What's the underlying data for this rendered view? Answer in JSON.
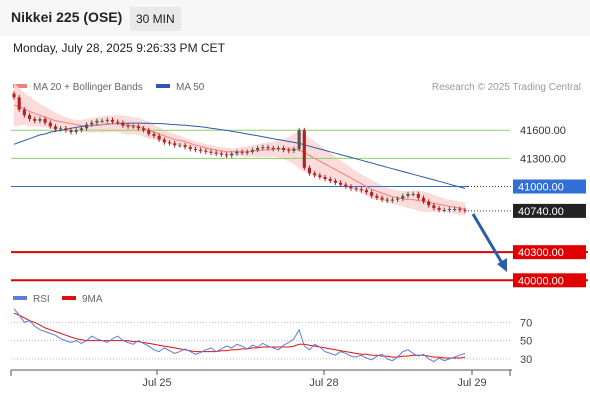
{
  "header": {
    "title": "Nikkei 225 (OSE)",
    "timeframe": "30 MIN",
    "datetime": "Monday, July 28, 2025 9:26:33 PM CET"
  },
  "colors": {
    "candle_up": "#555555",
    "candle_down": "#b02020",
    "ma20": "#f08080",
    "bollinger_fill": "#fbd5d5",
    "ma50": "#2f5aa8",
    "support_line": "#e00000",
    "pivot_line": "#2f6fd6",
    "resistance_line": "#8fcf6a",
    "rsi": "#5b7fd6",
    "rsi_ma": "#e01010",
    "arrow": "#2a5ea8"
  },
  "chart_data": [
    {
      "type": "line",
      "title": "",
      "legend": [
        {
          "label": "MA 20 + Bollinger Bands",
          "color": "#f08080"
        },
        {
          "label": "MA 50",
          "color": "#2f5aa8"
        }
      ],
      "watermark": "Research © 2025 Trading Central",
      "y_range": [
        39950,
        42050
      ],
      "x_ticks": [
        "Jul 25",
        "Jul 28",
        "Jul 29"
      ],
      "close": [
        41950,
        41820,
        41760,
        41720,
        41700,
        41720,
        41680,
        41640,
        41610,
        41620,
        41600,
        41580,
        41600,
        41620,
        41660,
        41680,
        41700,
        41700,
        41710,
        41690,
        41680,
        41650,
        41640,
        41640,
        41620,
        41600,
        41560,
        41540,
        41500,
        41470,
        41460,
        41440,
        41440,
        41420,
        41400,
        41390,
        41380,
        41370,
        41360,
        41350,
        41340,
        41330,
        41350,
        41370,
        41360,
        41370,
        41390,
        41410,
        41420,
        41410,
        41400,
        41410,
        41390,
        41380,
        41400,
        41600,
        41200,
        41140,
        41120,
        41100,
        41080,
        41060,
        41040,
        41020,
        41000,
        40980,
        40970,
        40960,
        40940,
        40900,
        40880,
        40860,
        40850,
        40860,
        40870,
        40900,
        40920,
        40920,
        40880,
        40840,
        40800,
        40770,
        40750,
        40750,
        40760,
        40760,
        40750,
        40740
      ],
      "ma20": [
        41870,
        41850,
        41830,
        41800,
        41780,
        41760,
        41740,
        41720,
        41700,
        41690,
        41680,
        41670,
        41660,
        41650,
        41650,
        41650,
        41660,
        41660,
        41670,
        41670,
        41670,
        41660,
        41650,
        41650,
        41640,
        41620,
        41600,
        41580,
        41560,
        41540,
        41520,
        41500,
        41490,
        41480,
        41460,
        41440,
        41430,
        41410,
        41400,
        41390,
        41380,
        41370,
        41370,
        41370,
        41370,
        41370,
        41380,
        41380,
        41390,
        41390,
        41400,
        41400,
        41400,
        41400,
        41400,
        41390,
        41360,
        41330,
        41300,
        41270,
        41240,
        41210,
        41180,
        41150,
        41120,
        41090,
        41060,
        41030,
        41000,
        40970,
        40950,
        40930,
        40910,
        40890,
        40880,
        40870,
        40860,
        40860,
        40850,
        40840,
        40830,
        40820,
        40810,
        40800,
        40790,
        40780,
        40770,
        40760
      ],
      "bb_upper": [
        42100,
        42050,
        42000,
        41960,
        41920,
        41880,
        41850,
        41820,
        41790,
        41760,
        41740,
        41720,
        41710,
        41710,
        41720,
        41730,
        41740,
        41750,
        41760,
        41760,
        41760,
        41760,
        41750,
        41740,
        41730,
        41710,
        41690,
        41660,
        41630,
        41600,
        41580,
        41560,
        41540,
        41520,
        41500,
        41480,
        41470,
        41450,
        41440,
        41430,
        41420,
        41410,
        41410,
        41410,
        41420,
        41430,
        41440,
        41450,
        41460,
        41470,
        41480,
        41490,
        41510,
        41530,
        41560,
        41590,
        41560,
        41520,
        41480,
        41440,
        41400,
        41360,
        41320,
        41280,
        41240,
        41200,
        41160,
        41130,
        41100,
        41070,
        41040,
        41010,
        40990,
        40970,
        40960,
        40950,
        40950,
        40960,
        40960,
        40950,
        40930,
        40910,
        40890,
        40870,
        40860,
        40850,
        40840,
        40830
      ],
      "bb_lower": [
        41640,
        41650,
        41660,
        41640,
        41640,
        41640,
        41630,
        41620,
        41610,
        41620,
        41620,
        41620,
        41610,
        41590,
        41580,
        41570,
        41580,
        41570,
        41580,
        41580,
        41580,
        41560,
        41550,
        41560,
        41550,
        41530,
        41510,
        41500,
        41490,
        41480,
        41460,
        41440,
        41440,
        41440,
        41420,
        41400,
        41390,
        41370,
        41360,
        41350,
        41340,
        41330,
        41330,
        41330,
        41320,
        41310,
        41320,
        41310,
        41320,
        41310,
        41320,
        41310,
        41290,
        41270,
        41240,
        41190,
        41160,
        41140,
        41120,
        41100,
        41080,
        41060,
        41040,
        41020,
        41000,
        40980,
        40960,
        40930,
        40900,
        40870,
        40860,
        40850,
        40830,
        40810,
        40800,
        40790,
        40770,
        40760,
        40740,
        40730,
        40730,
        40730,
        40730,
        40730,
        40720,
        40710,
        40700,
        40690
      ],
      "ma50": [
        41450,
        41470,
        41490,
        41510,
        41530,
        41550,
        41560,
        41580,
        41590,
        41600,
        41610,
        41620,
        41630,
        41640,
        41645,
        41650,
        41655,
        41660,
        41665,
        41670,
        41672,
        41674,
        41675,
        41676,
        41676,
        41675,
        41674,
        41672,
        41670,
        41668,
        41664,
        41660,
        41656,
        41652,
        41648,
        41642,
        41636,
        41630,
        41622,
        41614,
        41606,
        41598,
        41590,
        41580,
        41570,
        41560,
        41550,
        41540,
        41530,
        41520,
        41510,
        41500,
        41490,
        41480,
        41470,
        41460,
        41445,
        41430,
        41415,
        41400,
        41385,
        41370,
        41355,
        41340,
        41325,
        41310,
        41295,
        41280,
        41265,
        41250,
        41235,
        41220,
        41205,
        41190,
        41175,
        41160,
        41145,
        41130,
        41115,
        41100,
        41085,
        41070,
        41055,
        41040,
        41025,
        41010,
        40995,
        40980
      ],
      "levels": [
        {
          "label": "41600.00",
          "value": 41600,
          "kind": "resistance"
        },
        {
          "label": "41300.00",
          "value": 41300,
          "kind": "resistance"
        },
        {
          "label": "41000.00",
          "value": 41000,
          "kind": "pivot"
        },
        {
          "label": "40740.00",
          "value": 40740,
          "kind": "last"
        },
        {
          "label": "40300.00",
          "value": 40300,
          "kind": "support"
        },
        {
          "label": "40000.00",
          "value": 40000,
          "kind": "support"
        }
      ]
    },
    {
      "type": "line",
      "title": "",
      "legend": [
        {
          "label": "RSI",
          "color": "#5b7fd6"
        },
        {
          "label": "9MA",
          "color": "#e01010"
        }
      ],
      "y_range": [
        20,
        88
      ],
      "y_ticks": [
        70,
        50,
        30
      ],
      "rsi": [
        85,
        78,
        70,
        72,
        66,
        62,
        60,
        58,
        56,
        52,
        50,
        48,
        50,
        47,
        50,
        55,
        52,
        50,
        48,
        52,
        55,
        50,
        48,
        46,
        50,
        47,
        44,
        40,
        38,
        42,
        39,
        36,
        38,
        41,
        38,
        35,
        37,
        40,
        42,
        38,
        41,
        44,
        42,
        46,
        44,
        41,
        45,
        43,
        47,
        44,
        42,
        40,
        45,
        48,
        52,
        62,
        44,
        40,
        46,
        43,
        38,
        36,
        34,
        38,
        36,
        33,
        32,
        34,
        31,
        29,
        33,
        35,
        30,
        28,
        32,
        38,
        40,
        36,
        33,
        35,
        30,
        27,
        31,
        28,
        30,
        32,
        34,
        36
      ],
      "rsi_ma": [
        80,
        78,
        75,
        72,
        70,
        67,
        64,
        62,
        60,
        58,
        56,
        54,
        52,
        51,
        50,
        50,
        50,
        50,
        50,
        50,
        50,
        50,
        50,
        49,
        49,
        48,
        47,
        46,
        45,
        44,
        43,
        42,
        41,
        40,
        39,
        38,
        38,
        38,
        38,
        38,
        39,
        39,
        40,
        40,
        41,
        41,
        42,
        42,
        43,
        43,
        43,
        43,
        43,
        43,
        44,
        46,
        46,
        45,
        44,
        43,
        42,
        41,
        40,
        39,
        38,
        37,
        36,
        35,
        35,
        34,
        34,
        33,
        33,
        32,
        32,
        33,
        33,
        34,
        34,
        34,
        33,
        32,
        32,
        31,
        31,
        31,
        31,
        32
      ]
    }
  ]
}
